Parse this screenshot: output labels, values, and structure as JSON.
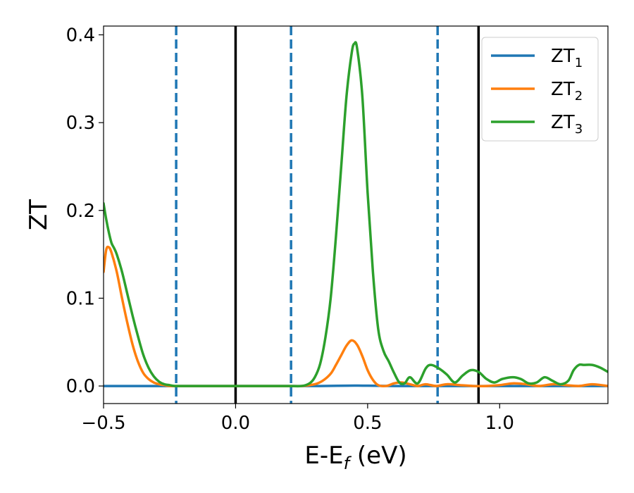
{
  "chart_data": {
    "type": "line",
    "xlabel": "E-E_f (eV)",
    "ylabel": "ZT",
    "xlim": [
      -0.5,
      1.41
    ],
    "ylim": [
      -0.02,
      0.41
    ],
    "x_ticks": [
      "−0.5",
      "0.0",
      "0.5",
      "1.0"
    ],
    "y_ticks": [
      "0.0",
      "0.1",
      "0.2",
      "0.3",
      "0.4"
    ],
    "grid": false,
    "legend_position": "top-right",
    "vertical_lines": [
      {
        "x": -0.225,
        "style": "dashed",
        "color": "#1f77b4"
      },
      {
        "x": 0.0,
        "style": "solid",
        "color": "#000000"
      },
      {
        "x": 0.21,
        "style": "dashed",
        "color": "#1f77b4"
      },
      {
        "x": 0.765,
        "style": "dashed",
        "color": "#1f77b4"
      },
      {
        "x": 0.92,
        "style": "solid",
        "color": "#000000"
      }
    ],
    "series": [
      {
        "name": "ZT1",
        "label_main": "ZT",
        "label_sub": "1",
        "color": "#1f77b4",
        "x": [
          -0.5,
          0.0,
          0.3,
          0.45,
          0.6,
          1.0,
          1.41
        ],
        "y": [
          0.0,
          0.0,
          0.0,
          0.0005,
          0.0,
          0.0,
          0.0
        ]
      },
      {
        "name": "ZT2",
        "label_main": "ZT",
        "label_sub": "2",
        "color": "#ff7f0e",
        "x": [
          -0.5,
          -0.49,
          -0.48,
          -0.47,
          -0.45,
          -0.43,
          -0.41,
          -0.39,
          -0.37,
          -0.35,
          -0.33,
          -0.31,
          -0.29,
          -0.27,
          -0.25,
          -0.2,
          -0.1,
          0.0,
          0.1,
          0.2,
          0.25,
          0.3,
          0.33,
          0.36,
          0.38,
          0.4,
          0.42,
          0.44,
          0.46,
          0.48,
          0.5,
          0.52,
          0.54,
          0.57,
          0.6,
          0.63,
          0.66,
          0.69,
          0.72,
          0.76,
          0.8,
          0.85,
          0.9,
          0.95,
          1.0,
          1.05,
          1.1,
          1.15,
          1.2,
          1.25,
          1.3,
          1.35,
          1.41
        ],
        "y": [
          0.13,
          0.155,
          0.158,
          0.152,
          0.13,
          0.1,
          0.072,
          0.047,
          0.028,
          0.015,
          0.008,
          0.004,
          0.002,
          0.001,
          0.0,
          0.0,
          0.0,
          0.0,
          0.0,
          0.0,
          0.0,
          0.002,
          0.006,
          0.014,
          0.024,
          0.035,
          0.046,
          0.052,
          0.047,
          0.034,
          0.018,
          0.007,
          0.001,
          0.0,
          0.003,
          0.004,
          0.002,
          0.0,
          0.002,
          0.0,
          0.002,
          0.001,
          0.0,
          0.0,
          0.001,
          0.003,
          0.002,
          0.0,
          0.002,
          0.001,
          0.0,
          0.002,
          0.0
        ]
      },
      {
        "name": "ZT3",
        "label_main": "ZT",
        "label_sub": "3",
        "color": "#2ca02c",
        "x": [
          -0.5,
          -0.49,
          -0.48,
          -0.47,
          -0.46,
          -0.45,
          -0.43,
          -0.41,
          -0.39,
          -0.37,
          -0.35,
          -0.33,
          -0.31,
          -0.29,
          -0.27,
          -0.25,
          -0.23,
          -0.2,
          -0.1,
          0.0,
          0.1,
          0.2,
          0.25,
          0.28,
          0.3,
          0.32,
          0.34,
          0.36,
          0.38,
          0.4,
          0.42,
          0.44,
          0.45,
          0.46,
          0.48,
          0.5,
          0.52,
          0.54,
          0.56,
          0.58,
          0.6,
          0.62,
          0.64,
          0.66,
          0.69,
          0.72,
          0.74,
          0.77,
          0.8,
          0.83,
          0.86,
          0.89,
          0.92,
          0.95,
          0.98,
          1.01,
          1.05,
          1.08,
          1.11,
          1.14,
          1.17,
          1.2,
          1.23,
          1.26,
          1.28,
          1.3,
          1.32,
          1.35,
          1.38,
          1.41
        ],
        "y": [
          0.208,
          0.19,
          0.175,
          0.163,
          0.157,
          0.15,
          0.13,
          0.105,
          0.08,
          0.057,
          0.036,
          0.021,
          0.011,
          0.005,
          0.002,
          0.001,
          0.0,
          0.0,
          0.0,
          0.0,
          0.0,
          0.0,
          0.0,
          0.003,
          0.01,
          0.025,
          0.055,
          0.1,
          0.17,
          0.25,
          0.33,
          0.38,
          0.39,
          0.385,
          0.33,
          0.22,
          0.13,
          0.065,
          0.04,
          0.028,
          0.015,
          0.004,
          0.003,
          0.01,
          0.003,
          0.02,
          0.024,
          0.02,
          0.013,
          0.004,
          0.012,
          0.018,
          0.016,
          0.008,
          0.004,
          0.008,
          0.01,
          0.008,
          0.003,
          0.004,
          0.01,
          0.006,
          0.002,
          0.006,
          0.018,
          0.024,
          0.024,
          0.024,
          0.021,
          0.016
        ]
      }
    ]
  }
}
